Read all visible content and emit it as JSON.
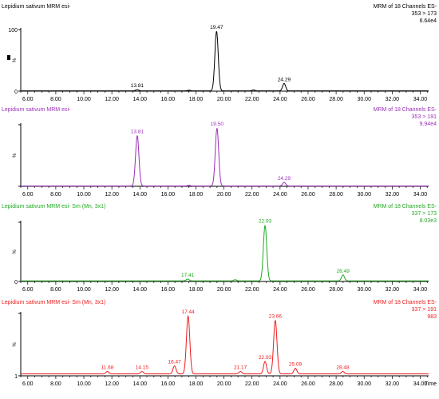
{
  "colors": {
    "axis": "#000000"
  },
  "chart_data": [
    {
      "type": "line",
      "color": "#000000",
      "header_left": "Lepidium sativum MRM esi-",
      "header_right": [
        "MRM of 18 Channels ES-",
        "353 > 173",
        "6.64e4"
      ],
      "ylabel": "%",
      "y_tick_labels": [
        "100",
        "0"
      ],
      "ylim": [
        0,
        100
      ],
      "xlim": [
        5.5,
        34.6
      ],
      "x_ticks": [
        6,
        8,
        10,
        12,
        14,
        16,
        18,
        20,
        22,
        24,
        26,
        28,
        30,
        32,
        34
      ],
      "x_tick_labels": [
        "6.00",
        "8.00",
        "10.00",
        "12.00",
        "14.00",
        "16.00",
        "18.00",
        "20.00",
        "22.00",
        "24.00",
        "26.00",
        "28.00",
        "30.00",
        "32.00",
        "34.00"
      ],
      "baseline": 0.5,
      "peaks": [
        {
          "rt": 13.81,
          "height": 2,
          "label": "13.81"
        },
        {
          "rt": 19.47,
          "height": 97,
          "label": "19.47"
        },
        {
          "rt": 24.29,
          "height": 12,
          "label": "24.29"
        },
        {
          "rt": 17.5,
          "height": 1
        },
        {
          "rt": 22.1,
          "height": 1.5
        }
      ]
    },
    {
      "type": "line",
      "color": "#9b30b8",
      "header_left": "Lepidium sativum MRM esi-",
      "header_right": [
        "MRM of 18 Channels ES-",
        "353 > 191",
        "9.94e4"
      ],
      "ylabel": "%",
      "y_tick_labels": [],
      "ylim": [
        0,
        100
      ],
      "xlim": [
        5.5,
        34.6
      ],
      "x_ticks": [
        6,
        8,
        10,
        12,
        14,
        16,
        18,
        20,
        22,
        24,
        26,
        28,
        30,
        32,
        34
      ],
      "x_tick_labels": [
        "6.00",
        "8.00",
        "10.00",
        "12.00",
        "14.00",
        "16.00",
        "18.00",
        "20.00",
        "22.00",
        "24.00",
        "26.00",
        "28.00",
        "30.00",
        "32.00",
        "34.00"
      ],
      "baseline": 0.5,
      "peaks": [
        {
          "rt": 13.81,
          "height": 82,
          "label": "13.81"
        },
        {
          "rt": 19.5,
          "height": 94,
          "label": "19.50"
        },
        {
          "rt": 24.29,
          "height": 6,
          "label": "24.29"
        },
        {
          "rt": 17.5,
          "height": 1
        }
      ]
    },
    {
      "type": "line",
      "color": "#22a822",
      "header_left": "Lepidium sativum MRM esi- Sm (Mn, 3x1)",
      "header_right": [
        "MRM of 18 Channels ES-",
        "337 > 173",
        "8.03e3"
      ],
      "ylabel": "%",
      "y_tick_labels": [
        "0"
      ],
      "ylim": [
        0,
        100
      ],
      "xlim": [
        5.5,
        34.6
      ],
      "x_ticks": [
        6,
        8,
        10,
        12,
        14,
        16,
        18,
        20,
        22,
        24,
        26,
        28,
        30,
        32,
        34
      ],
      "x_tick_labels": [
        "6.00",
        "8.00",
        "10.00",
        "12.00",
        "14.00",
        "16.00",
        "18.00",
        "20.00",
        "22.00",
        "24.00",
        "26.00",
        "28.00",
        "30.00",
        "32.00",
        "34.00"
      ],
      "baseline": 1,
      "peaks": [
        {
          "rt": 17.41,
          "height": 3,
          "label": "17.41"
        },
        {
          "rt": 22.93,
          "height": 94,
          "label": "22.93"
        },
        {
          "rt": 28.49,
          "height": 10,
          "label": "28.49"
        },
        {
          "rt": 20.8,
          "height": 2
        }
      ]
    },
    {
      "type": "line",
      "color": "#ee1c1c",
      "header_left": "Lepidium sativum MRM esi- Sm (Mn, 3x1)",
      "header_right": [
        "MRM of 18 Channels ES-",
        "337 > 191",
        "983"
      ],
      "ylabel": "%",
      "y_tick_labels": [
        "1"
      ],
      "ylim": [
        0,
        100
      ],
      "xlim": [
        5.5,
        34.6
      ],
      "x_ticks": [
        6,
        8,
        10,
        12,
        14,
        16,
        18,
        20,
        22,
        24,
        26,
        28,
        30,
        32,
        34
      ],
      "x_tick_labels": [
        "6.00",
        "8.00",
        "10.00",
        "12.00",
        "14.00",
        "16.00",
        "18.00",
        "20.00",
        "22.00",
        "24.00",
        "26.00",
        "28.00",
        "30.00",
        "32.00",
        "34.00"
      ],
      "x_axis_title": "Time",
      "baseline": 3,
      "peaks": [
        {
          "rt": 11.68,
          "height": 4,
          "label": "11.68"
        },
        {
          "rt": 14.15,
          "height": 4,
          "label": "14.15"
        },
        {
          "rt": 16.47,
          "height": 13,
          "label": "16.47"
        },
        {
          "rt": 17.44,
          "height": 93,
          "label": "17.44"
        },
        {
          "rt": 21.17,
          "height": 4,
          "label": "21.17"
        },
        {
          "rt": 22.93,
          "height": 20,
          "label": "22.93"
        },
        {
          "rt": 23.66,
          "height": 86,
          "label": "23.66"
        },
        {
          "rt": 25.09,
          "height": 9,
          "label": "25.09"
        },
        {
          "rt": 28.48,
          "height": 4,
          "label": "28.48"
        }
      ]
    }
  ]
}
